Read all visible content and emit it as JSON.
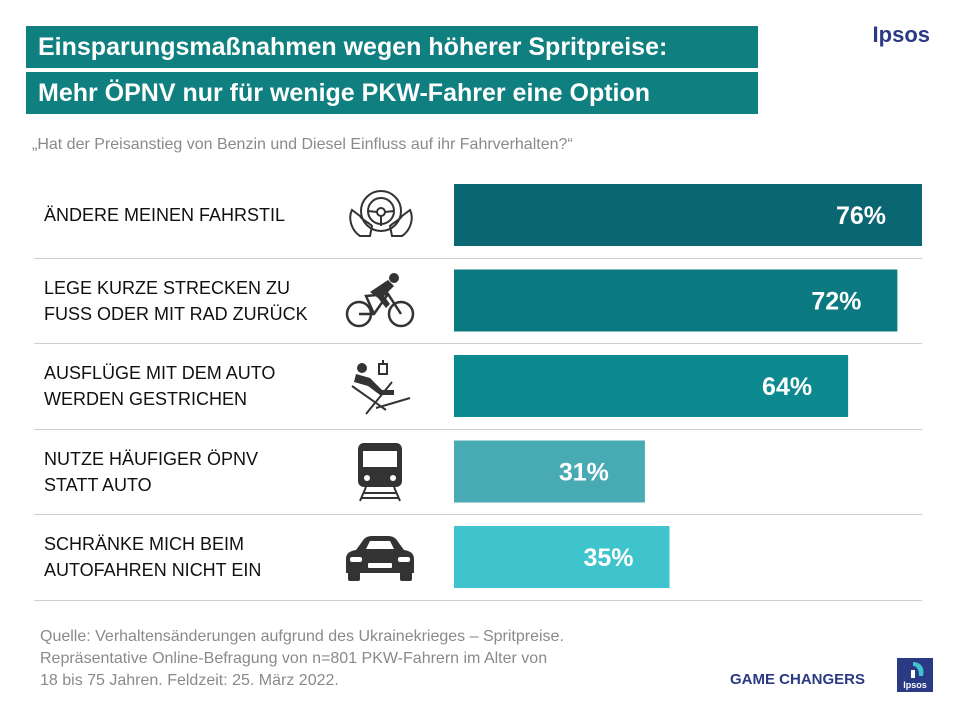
{
  "header": {
    "title_line1": "Einsparungsmaßnahmen wegen höherer Spritpreise:",
    "title_line2": "Mehr ÖPNV nur für wenige PKW-Fahrer eine Option",
    "brand": "Ipsos"
  },
  "question": "„Hat der Preisanstieg von Benzin und Diesel Einfluss auf ihr Fahrverhalten?“",
  "chart_data": {
    "type": "bar",
    "orientation": "horizontal",
    "categories": [
      "ÄNDERE MEINEN FAHRSTIL",
      "LEGE KURZE STRECKEN ZU FUSS ODER MIT RAD ZURÜCK",
      "AUSFLÜGE MIT DEM AUTO WERDEN GESTRICHEN",
      "NUTZE HÄUFIGER ÖPNV STATT AUTO",
      "SCHRÄNKE MICH BEIM AUTOFAHREN NICHT EIN"
    ],
    "label_lines": [
      [
        "ÄNDERE MEINEN FAHRSTIL"
      ],
      [
        "LEGE KURZE STRECKEN ZU",
        "FUSS ODER MIT RAD ZURÜCK"
      ],
      [
        "AUSFLÜGE MIT DEM AUTO",
        "WERDEN GESTRICHEN"
      ],
      [
        "NUTZE HÄUFIGER ÖPNV",
        "STATT AUTO"
      ],
      [
        "SCHRÄNKE MICH BEIM",
        "AUTOFAHREN NICHT EIN"
      ]
    ],
    "values": [
      76,
      72,
      64,
      31,
      35
    ],
    "value_labels": [
      "76%",
      "72%",
      "64%",
      "31%",
      "35%"
    ],
    "colors": [
      "#0a6670",
      "#0b7a80",
      "#0d8a90",
      "#48aab2",
      "#3fc3cc"
    ],
    "icons": [
      "steering-wheel-icon",
      "cyclist-icon",
      "deckchair-icon",
      "train-icon",
      "car-icon"
    ],
    "unit": "%",
    "xlim": [
      0,
      76
    ]
  },
  "footer": {
    "source_lines": [
      "Quelle: Verhaltensänderungen  aufgrund des Ukrainekrieges  – Spritpreise.",
      "Repräsentative  Online-Befragung  von n=801 PKW-Fahrern  im Alter von",
      "18 bis 75 Jahren.  Feldzeit: 25. März 2022."
    ],
    "tagline": "GAME CHANGERS",
    "logo_text": "Ipsos"
  }
}
